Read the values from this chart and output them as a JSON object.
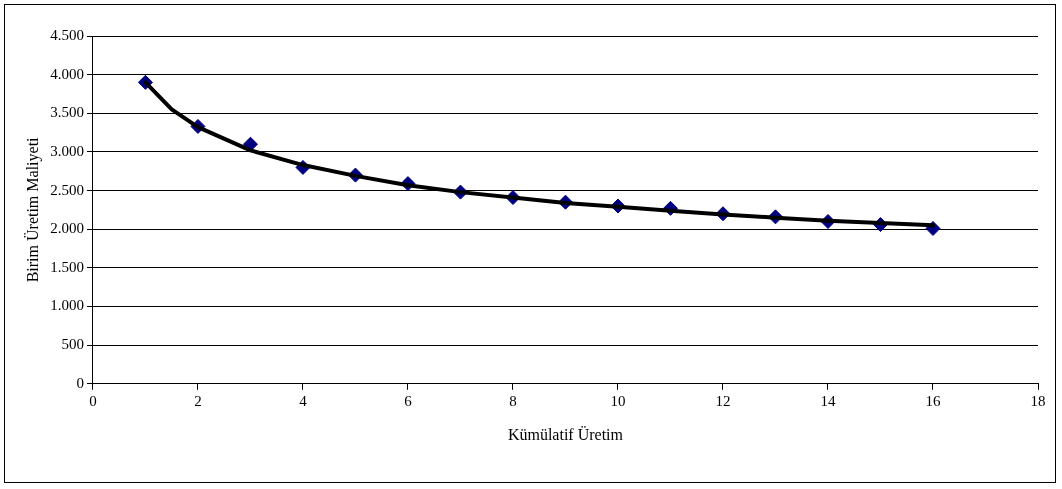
{
  "chart_data": {
    "type": "scatter",
    "xlabel": "Kümülatif Üretim",
    "ylabel": "Birim Üretim Maliyeti",
    "xlim": [
      0,
      18
    ],
    "xticks": [
      0,
      2,
      4,
      6,
      8,
      10,
      12,
      14,
      16,
      18
    ],
    "ylim": [
      0,
      4500
    ],
    "yticks": [
      0,
      500,
      {
        "value": 1000,
        "label": "1.000"
      },
      {
        "value": 1500,
        "label": "1.500"
      },
      {
        "value": 2000,
        "label": "2.000"
      },
      {
        "value": 2500,
        "label": "2.500"
      },
      {
        "value": 3000,
        "label": "3.000"
      },
      {
        "value": 3500,
        "label": "3.500"
      },
      {
        "value": 4000,
        "label": "4.000"
      },
      {
        "value": 4500,
        "label": "4.500"
      }
    ],
    "grid": "y",
    "legend": false,
    "marker": "diamond",
    "series": [
      {
        "type": "scatter",
        "color": "#000080",
        "x": [
          1,
          2,
          3,
          4,
          5,
          6,
          7,
          8,
          9,
          10,
          11,
          12,
          13,
          14,
          15,
          16
        ],
        "values": [
          3900,
          3330,
          3100,
          2800,
          2700,
          2590,
          2480,
          2410,
          2350,
          2300,
          2270,
          2200,
          2160,
          2100,
          2060,
          2010
        ]
      },
      {
        "type": "line",
        "marker": "none",
        "color": "#000000",
        "x": [
          1,
          1.5,
          2,
          3,
          4,
          5,
          6,
          7,
          8,
          9,
          10,
          11,
          12,
          13,
          14,
          15,
          16
        ],
        "values": [
          3900,
          3550,
          3320,
          3020,
          2830,
          2690,
          2570,
          2480,
          2410,
          2340,
          2290,
          2240,
          2190,
          2150,
          2110,
          2080,
          2050
        ]
      }
    ]
  }
}
